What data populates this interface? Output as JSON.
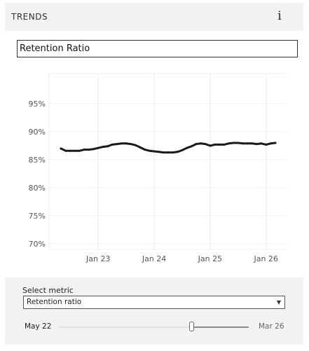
{
  "header": {
    "title": "TRENDS",
    "info_icon": "i"
  },
  "chart": {
    "title": "Retention Ratio"
  },
  "chart_data": {
    "type": "line",
    "title": "Retention Ratio",
    "xlabel": "",
    "ylabel": "",
    "y_ticks": [
      "95%",
      "90%",
      "85%",
      "80%",
      "75%",
      "70%"
    ],
    "y_tick_values": [
      95,
      90,
      85,
      80,
      75,
      70
    ],
    "x_ticks": [
      "Jan 23",
      "Jan 24",
      "Jan 25",
      "Jan 26"
    ],
    "x_tick_values": [
      "2023-01",
      "2024-01",
      "2025-01",
      "2026-01"
    ],
    "ylim": [
      69,
      104
    ],
    "xlim": [
      "2022-05",
      "2026-03"
    ],
    "grid": true,
    "series": [
      {
        "color": "#1a1a1a",
        "points": [
          [
            "2022-05",
            87.0
          ],
          [
            "2022-06",
            86.6
          ],
          [
            "2022-07",
            86.6
          ],
          [
            "2022-08",
            86.6
          ],
          [
            "2022-09",
            86.6
          ],
          [
            "2022-10",
            86.8
          ],
          [
            "2022-11",
            86.8
          ],
          [
            "2022-12",
            86.9
          ],
          [
            "2023-01",
            87.1
          ],
          [
            "2023-02",
            87.3
          ],
          [
            "2023-03",
            87.4
          ],
          [
            "2023-04",
            87.7
          ],
          [
            "2023-05",
            87.8
          ],
          [
            "2023-06",
            87.9
          ],
          [
            "2023-07",
            87.9
          ],
          [
            "2023-08",
            87.8
          ],
          [
            "2023-09",
            87.6
          ],
          [
            "2023-10",
            87.2
          ],
          [
            "2023-11",
            86.8
          ],
          [
            "2023-12",
            86.6
          ],
          [
            "2024-01",
            86.5
          ],
          [
            "2024-02",
            86.4
          ],
          [
            "2024-03",
            86.3
          ],
          [
            "2024-04",
            86.3
          ],
          [
            "2024-05",
            86.3
          ],
          [
            "2024-06",
            86.4
          ],
          [
            "2024-07",
            86.7
          ],
          [
            "2024-08",
            87.1
          ],
          [
            "2024-09",
            87.4
          ],
          [
            "2024-10",
            87.8
          ],
          [
            "2024-11",
            87.9
          ],
          [
            "2024-12",
            87.8
          ],
          [
            "2025-01",
            87.5
          ],
          [
            "2025-02",
            87.7
          ],
          [
            "2025-03",
            87.7
          ],
          [
            "2025-04",
            87.7
          ],
          [
            "2025-05",
            87.9
          ],
          [
            "2025-06",
            88.0
          ],
          [
            "2025-07",
            88.0
          ],
          [
            "2025-08",
            87.9
          ],
          [
            "2025-09",
            87.9
          ],
          [
            "2025-10",
            87.9
          ],
          [
            "2025-11",
            87.8
          ],
          [
            "2025-12",
            87.9
          ],
          [
            "2026-01",
            87.7
          ],
          [
            "2026-02",
            87.9
          ],
          [
            "2026-03",
            88.0
          ]
        ]
      }
    ]
  },
  "controls": {
    "select_label": "Select metric",
    "select_value": "Retention ratio",
    "range_start": "May 22",
    "range_end": "Mar 26",
    "slider_fraction": 0.7
  }
}
